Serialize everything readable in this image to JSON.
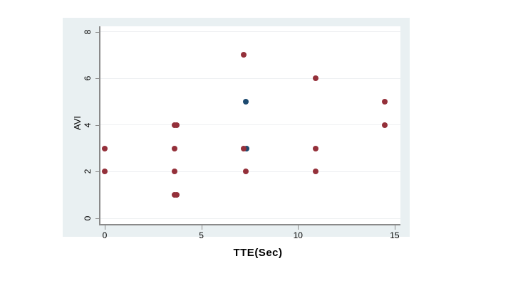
{
  "chart_data": {
    "type": "scatter",
    "title": "",
    "xlabel": "TTE(Sec)",
    "ylabel": "AVI",
    "x_ticks": [
      0,
      5,
      10,
      15
    ],
    "y_ticks": [
      0,
      2,
      4,
      6,
      8
    ],
    "xlim": [
      -0.25,
      15.5
    ],
    "ylim": [
      -0.2,
      8.3
    ],
    "grid": "horizontal-only",
    "legend": "none",
    "series": [
      {
        "name": "navy-points",
        "color": "#1d4a70",
        "points": [
          [
            7.35,
            3
          ],
          [
            7.3,
            5
          ]
        ]
      },
      {
        "name": "maroon-points",
        "color": "#94303a",
        "points": [
          [
            0,
            2
          ],
          [
            0,
            3
          ],
          [
            3.6,
            1
          ],
          [
            3.72,
            1
          ],
          [
            3.6,
            2
          ],
          [
            3.6,
            3
          ],
          [
            3.6,
            4
          ],
          [
            3.72,
            4
          ],
          [
            7.3,
            2
          ],
          [
            7.2,
            3
          ],
          [
            7.2,
            7
          ],
          [
            10.9,
            2
          ],
          [
            10.9,
            3
          ],
          [
            10.9,
            6
          ],
          [
            14.5,
            4
          ],
          [
            14.5,
            5
          ]
        ]
      }
    ],
    "colors": {
      "figure_background": "#e9f0f2",
      "plot_background": "#ffffff",
      "gridline": "#edeff1",
      "axis_line": "#8a8a8a",
      "tick_text": "#000000"
    }
  }
}
